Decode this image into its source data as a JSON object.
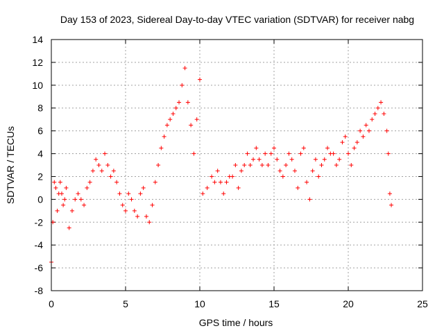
{
  "chart_data": {
    "type": "scatter",
    "title": "Day 153 of 2023, Sidereal Day-to-day VTEC variation (SDTVAR) for receiver nabg",
    "xlabel": "GPS time / hours",
    "ylabel": "SDTVAR / TECUs",
    "xlim": [
      0,
      25
    ],
    "ylim": [
      -8,
      14
    ],
    "xticks": [
      0,
      5,
      10,
      15,
      20,
      25
    ],
    "yticks": [
      -8,
      -6,
      -4,
      -2,
      0,
      2,
      4,
      6,
      8,
      10,
      12,
      14
    ],
    "grid": true,
    "marker": "plus",
    "color": "#ff0000",
    "series": [
      {
        "name": "SDTVAR",
        "x": [
          0.0,
          0.1,
          0.2,
          0.3,
          0.4,
          0.5,
          0.6,
          0.7,
          0.8,
          0.9,
          1.0,
          1.2,
          1.4,
          1.6,
          1.8,
          2.0,
          2.2,
          2.4,
          2.6,
          2.8,
          3.0,
          3.2,
          3.4,
          3.6,
          3.8,
          4.0,
          4.2,
          4.4,
          4.6,
          4.8,
          5.0,
          5.2,
          5.4,
          5.6,
          5.8,
          6.0,
          6.2,
          6.4,
          6.6,
          6.8,
          7.0,
          7.2,
          7.4,
          7.6,
          7.8,
          8.0,
          8.2,
          8.4,
          8.6,
          8.8,
          9.0,
          9.2,
          9.4,
          9.6,
          9.8,
          10.0,
          10.2,
          10.5,
          10.8,
          11.0,
          11.2,
          11.4,
          11.6,
          11.8,
          12.0,
          12.2,
          12.4,
          12.6,
          12.8,
          13.0,
          13.2,
          13.4,
          13.6,
          13.8,
          14.0,
          14.2,
          14.4,
          14.6,
          14.8,
          15.0,
          15.2,
          15.4,
          15.6,
          15.8,
          16.0,
          16.2,
          16.4,
          16.6,
          16.8,
          17.0,
          17.2,
          17.4,
          17.6,
          17.8,
          18.0,
          18.2,
          18.4,
          18.6,
          18.8,
          19.0,
          19.2,
          19.4,
          19.6,
          19.8,
          20.0,
          20.2,
          20.4,
          20.6,
          20.8,
          21.0,
          21.2,
          21.4,
          21.6,
          21.8,
          22.0,
          22.2,
          22.4,
          22.6,
          22.7,
          22.8,
          22.9
        ],
        "y": [
          -5.5,
          -2.0,
          1.5,
          1.0,
          -1.0,
          0.5,
          1.5,
          0.5,
          -0.5,
          0.0,
          1.0,
          -2.5,
          -1.0,
          0.0,
          0.5,
          0.0,
          -0.5,
          1.0,
          1.5,
          2.5,
          3.5,
          3.0,
          2.5,
          4.0,
          3.0,
          2.0,
          2.5,
          1.5,
          0.5,
          -0.5,
          -1.0,
          0.5,
          0.0,
          -1.0,
          -1.5,
          0.5,
          1.0,
          -1.5,
          -2.0,
          -0.5,
          1.5,
          3.0,
          4.5,
          5.5,
          6.5,
          7.0,
          7.5,
          8.0,
          8.5,
          10.0,
          11.5,
          8.5,
          6.5,
          4.0,
          7.0,
          10.5,
          0.5,
          1.0,
          2.0,
          1.5,
          2.5,
          1.5,
          0.5,
          1.5,
          2.0,
          2.0,
          3.0,
          1.0,
          2.5,
          3.0,
          4.0,
          3.0,
          3.5,
          4.5,
          3.5,
          3.0,
          4.0,
          3.0,
          4.0,
          4.5,
          3.5,
          2.5,
          2.0,
          3.0,
          4.0,
          3.5,
          2.5,
          1.0,
          4.0,
          4.5,
          1.5,
          0.0,
          2.5,
          3.5,
          2.0,
          3.0,
          3.5,
          4.5,
          4.0,
          4.0,
          3.0,
          3.5,
          5.0,
          5.5,
          4.0,
          3.0,
          4.5,
          5.0,
          6.0,
          5.5,
          6.5,
          6.0,
          7.0,
          7.5,
          8.0,
          8.5,
          7.5,
          6.0,
          4.0,
          0.5,
          -0.5
        ]
      }
    ]
  }
}
